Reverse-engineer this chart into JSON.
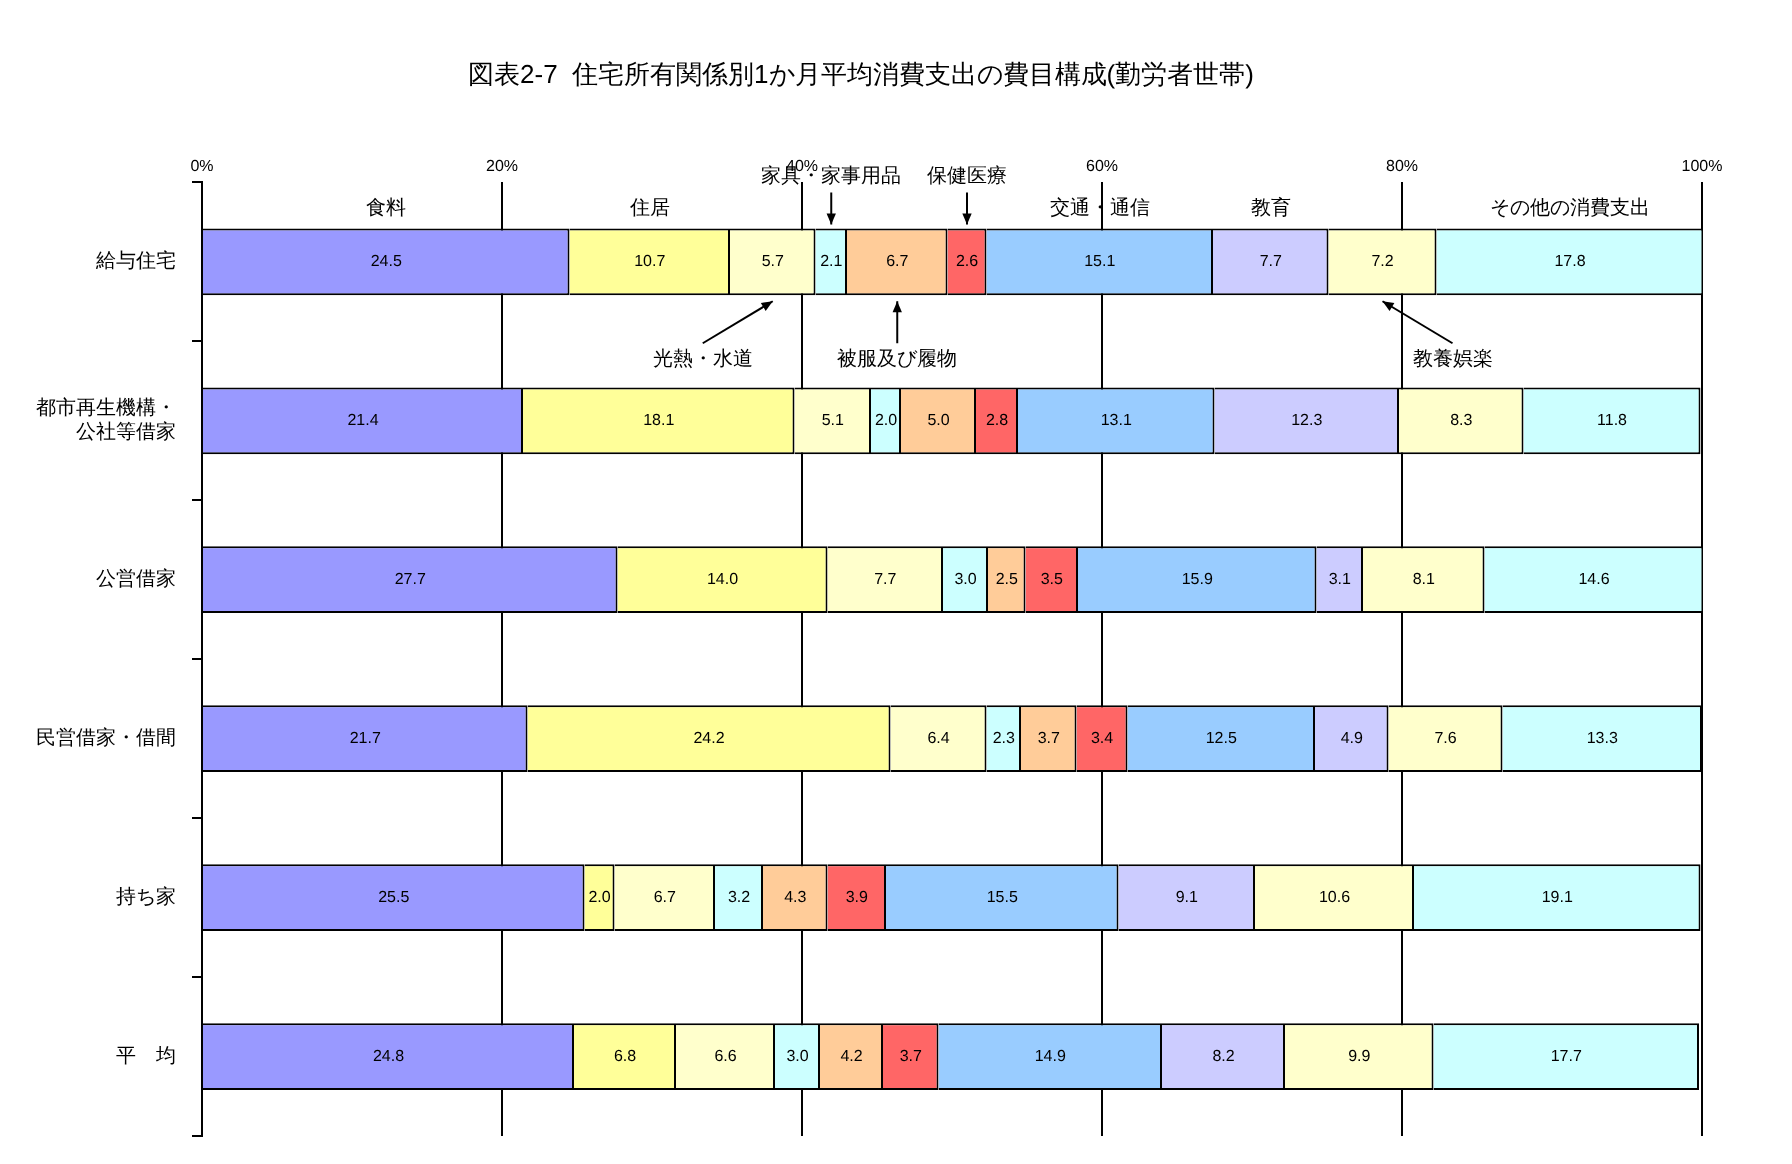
{
  "chart_data": {
    "type": "bar",
    "orientation": "horizontal",
    "stacked": true,
    "title": "図表2-7  住宅所有関係別1か月平均消費支出の費目構成(勤労者世帯)",
    "categories": [
      "給与住宅",
      "都市再生機構・公社等借家",
      "公営借家",
      "民営借家・借間",
      "持ち家",
      "平　均"
    ],
    "series": [
      {
        "name": "食料",
        "color": "#9999ff",
        "values": [
          24.5,
          21.4,
          27.7,
          21.7,
          25.5,
          24.8
        ],
        "value_labels": [
          "24.5",
          "21.4",
          "27.7",
          "21.7",
          "25.5",
          "24.8"
        ]
      },
      {
        "name": "住居",
        "color": "#ffff99",
        "values": [
          10.7,
          18.1,
          14.0,
          24.2,
          2.0,
          6.8
        ],
        "value_labels": [
          "10.7",
          "18.1",
          "14.0",
          "24.2",
          "2.0",
          "6.8"
        ]
      },
      {
        "name": "光熱・水道",
        "color": "#ffffcc",
        "values": [
          5.7,
          5.1,
          7.7,
          6.4,
          6.7,
          6.6
        ],
        "value_labels": [
          "5.7",
          "5.1",
          "7.7",
          "6.4",
          "6.7",
          "6.6"
        ]
      },
      {
        "name": "家具・家事用品",
        "color": "#ccffff",
        "values": [
          2.1,
          2.0,
          3.0,
          2.3,
          3.2,
          3.0
        ],
        "value_labels": [
          "2.1",
          "2.0",
          "3.0",
          "2.3",
          "3.2",
          "3.0"
        ]
      },
      {
        "name": "被服及び履物",
        "color": "#ffcc99",
        "values": [
          6.7,
          5.0,
          2.5,
          3.7,
          4.3,
          4.2
        ],
        "value_labels": [
          "6.7",
          "5.0",
          "2.5",
          "3.7",
          "4.3",
          "4.2"
        ]
      },
      {
        "name": "保健医療",
        "color": "#ff6666",
        "values": [
          2.6,
          2.8,
          3.5,
          3.4,
          3.9,
          3.7
        ],
        "value_labels": [
          "2.6",
          "2.8",
          "3.5",
          "3.4",
          "3.9",
          "3.7"
        ]
      },
      {
        "name": "交通・通信",
        "color": "#99ccff",
        "values": [
          15.1,
          13.1,
          15.9,
          12.5,
          15.5,
          14.9
        ],
        "value_labels": [
          "15.1",
          "13.1",
          "15.9",
          "12.5",
          "15.5",
          "14.9"
        ]
      },
      {
        "name": "教育",
        "color": "#ccccff",
        "values": [
          7.7,
          12.3,
          3.1,
          4.9,
          9.1,
          8.2
        ],
        "value_labels": [
          "7.7",
          "12.3",
          "3.1",
          "4.9",
          "9.1",
          "8.2"
        ]
      },
      {
        "name": "教養娯楽",
        "color": "#ffffcc",
        "values": [
          7.2,
          8.3,
          8.1,
          7.6,
          10.6,
          9.9
        ],
        "value_labels": [
          "7.2",
          "8.3",
          "8.1",
          "7.6",
          "10.6",
          "9.9"
        ]
      },
      {
        "name": "その他の消費支出",
        "color": "#ccffff",
        "values": [
          17.8,
          11.8,
          14.6,
          13.3,
          19.1,
          17.7
        ],
        "value_labels": [
          "17.8",
          "11.8",
          "14.6",
          "13.3",
          "19.1",
          "17.7"
        ]
      }
    ],
    "xlim": [
      0,
      100
    ],
    "xticks": [
      {
        "value": 0,
        "label": "0%"
      },
      {
        "value": 20,
        "label": "20%"
      },
      {
        "value": 40,
        "label": "40%"
      },
      {
        "value": 60,
        "label": "60%"
      },
      {
        "value": 80,
        "label": "80%"
      },
      {
        "value": 100,
        "label": "100%"
      }
    ],
    "grid": "x",
    "legend": false
  }
}
